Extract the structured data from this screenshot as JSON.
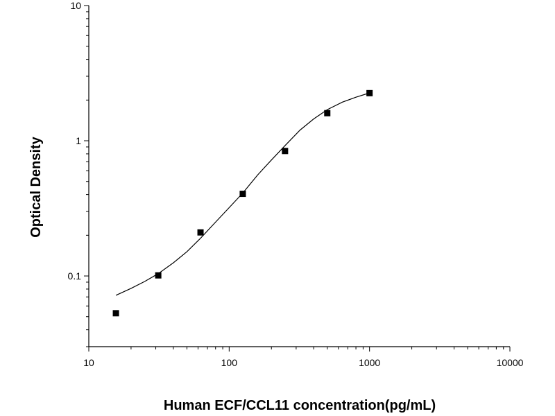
{
  "chart_data": {
    "type": "scatter",
    "title": "",
    "xlabel": "Human ECF/CCL11 concentration(pg/mL)",
    "ylabel": "Optical Density",
    "x_scale": "log",
    "y_scale": "log",
    "xlim": [
      10,
      10000
    ],
    "ylim": [
      0.03,
      10
    ],
    "x_ticks": [
      10,
      100,
      1000,
      10000
    ],
    "x_tick_labels": [
      "10",
      "100",
      "1000",
      "10000"
    ],
    "y_ticks": [
      0.1,
      1,
      10
    ],
    "y_tick_labels": [
      "0.1",
      "1",
      "10"
    ],
    "grid": false,
    "legend": "none",
    "series": [
      {
        "kind": "points",
        "x": [
          15.6,
          31.25,
          62.5,
          125,
          250,
          500,
          1000
        ],
        "y": [
          0.053,
          0.101,
          0.21,
          0.405,
          0.84,
          1.6,
          2.25
        ]
      },
      {
        "kind": "fit-curve",
        "x": [
          15.6,
          20,
          25,
          31.25,
          40,
          50,
          62.5,
          80,
          100,
          125,
          160,
          200,
          250,
          320,
          400,
          500,
          640,
          800,
          1000
        ],
        "y": [
          0.072,
          0.081,
          0.091,
          0.104,
          0.125,
          0.151,
          0.19,
          0.25,
          0.32,
          0.41,
          0.56,
          0.72,
          0.92,
          1.2,
          1.45,
          1.7,
          1.93,
          2.1,
          2.26
        ]
      }
    ],
    "colors": {
      "line": "#000000",
      "marker": "#000000",
      "axis": "#000000"
    }
  }
}
